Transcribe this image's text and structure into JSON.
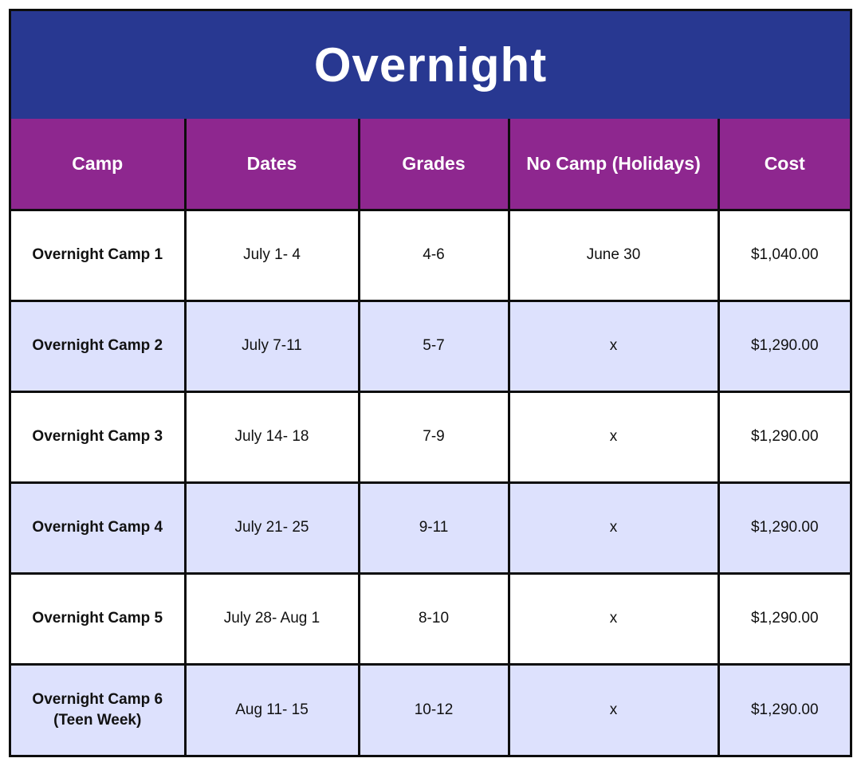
{
  "title": "Overnight",
  "headers": {
    "camp": "Camp",
    "dates": "Dates",
    "grades": "Grades",
    "no_camp": "No Camp (Holidays)",
    "cost": "Cost"
  },
  "rows": [
    {
      "camp": "Overnight Camp 1",
      "dates": "July 1- 4",
      "grades": "4-6",
      "no_camp": "June 30",
      "cost": "$1,040.00"
    },
    {
      "camp": "Overnight Camp 2",
      "dates": "July 7-11",
      "grades": "5-7",
      "no_camp": "x",
      "cost": "$1,290.00"
    },
    {
      "camp": "Overnight Camp 3",
      "dates": "July 14- 18",
      "grades": "7-9",
      "no_camp": "x",
      "cost": "$1,290.00"
    },
    {
      "camp": "Overnight Camp 4",
      "dates": "July 21- 25",
      "grades": "9-11",
      "no_camp": "x",
      "cost": "$1,290.00"
    },
    {
      "camp": "Overnight Camp 5",
      "dates": "July 28- Aug 1",
      "grades": "8-10",
      "no_camp": "x",
      "cost": "$1,290.00"
    },
    {
      "camp": "Overnight Camp 6 (Teen Week)",
      "dates": "Aug 11- 15",
      "grades": "10-12",
      "no_camp": "x",
      "cost": "$1,290.00"
    }
  ],
  "colors": {
    "title_bg": "#283891",
    "header_bg": "#8e278f",
    "alt_row_bg": "#dde1fd",
    "border": "#0d0d0d"
  }
}
